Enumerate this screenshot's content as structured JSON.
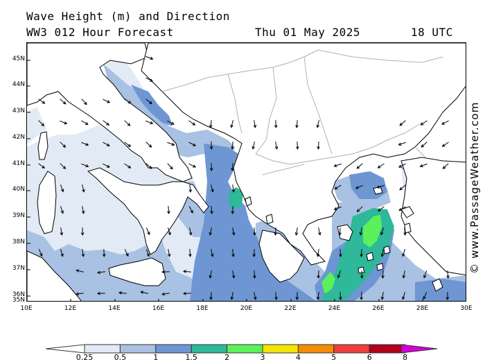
{
  "header": {
    "title": "Wave Height (m) and Direction",
    "model": "WW3 012 Hour Forecast",
    "date": "Thu 01 May 2025",
    "time": "18 UTC"
  },
  "credit": "© www.PassageWeather.com",
  "lat_labels": [
    "45N",
    "44N",
    "43N",
    "42N",
    "41N",
    "40N",
    "39N",
    "38N",
    "37N",
    "36N",
    "35N"
  ],
  "lon_labels": [
    "10E",
    "12E",
    "14E",
    "16E",
    "18E",
    "20E",
    "22E",
    "24E",
    "26E",
    "28E",
    "30E"
  ],
  "legend": {
    "labels": [
      "0.25",
      "0.5",
      "1",
      "1.5",
      "2",
      "3",
      "4",
      "5",
      "6",
      "8"
    ],
    "colors": [
      "#e2eaf5",
      "#a9c1e2",
      "#6e96d3",
      "#2fb899",
      "#5cf05a",
      "#f2e600",
      "#f28c00",
      "#ee3e3e",
      "#b3001b",
      "#d400d2"
    ]
  },
  "colors": {
    "land": "#ffffff",
    "coast": "#000000",
    "border": "#b0b0b0",
    "arrow": "#000000"
  }
}
